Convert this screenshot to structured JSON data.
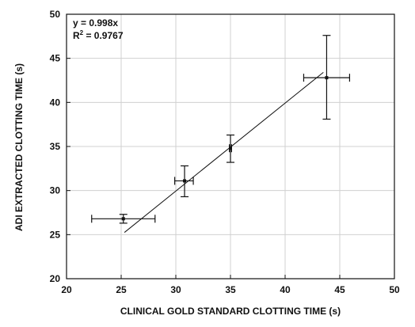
{
  "chart_data": {
    "type": "scatter",
    "title": "",
    "xlabel": "CLINICAL GOLD STANDARD CLOTTING TIME (s)",
    "ylabel": "ADI EXTRACTED CLOTTING TIME (s)",
    "xlim": [
      20,
      50
    ],
    "ylim": [
      20,
      50
    ],
    "x_ticks": [
      20,
      25,
      30,
      35,
      40,
      45,
      50
    ],
    "y_ticks": [
      20,
      25,
      30,
      35,
      40,
      45,
      50
    ],
    "x_tick_labels": [
      "20",
      "25",
      "30",
      "35",
      "40",
      "45",
      "50"
    ],
    "y_tick_labels": [
      "20",
      "25",
      "30",
      "35",
      "40",
      "45",
      "50"
    ],
    "grid": true,
    "points": [
      {
        "x": 25.2,
        "y": 26.8,
        "x_err_low": 22.3,
        "x_err_high": 28.1,
        "y_err_low": 26.3,
        "y_err_high": 27.3
      },
      {
        "x": 30.8,
        "y": 31.1,
        "x_err_low": 29.9,
        "x_err_high": 31.6,
        "y_err_low": 29.3,
        "y_err_high": 32.8
      },
      {
        "x": 35.0,
        "y": 34.8,
        "x_err_low": 34.9,
        "x_err_high": 35.1,
        "y_err_low": 33.2,
        "y_err_high": 36.3
      },
      {
        "x": 43.8,
        "y": 42.8,
        "x_err_low": 41.7,
        "x_err_high": 45.9,
        "y_err_low": 38.1,
        "y_err_high": 47.6
      }
    ],
    "fit_line": {
      "equation": "y = 0.998x",
      "r_squared_prefix": "R",
      "r_squared_sup": "2",
      "r_squared_value": " = 0.9767",
      "x_start": 25.3,
      "x_end": 43.5,
      "slope": 0.998
    }
  }
}
